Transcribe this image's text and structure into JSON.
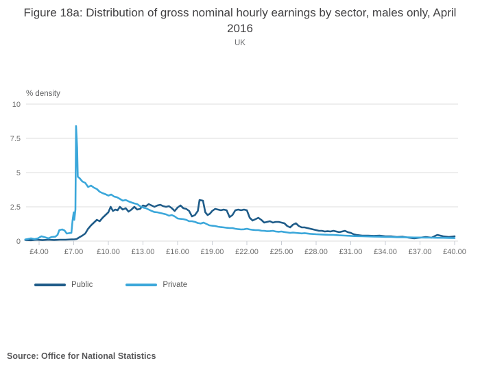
{
  "header": {
    "title": "Figure 18a: Distribution of gross nominal hourly earnings by sector, males only, April 2016",
    "subtitle": "UK"
  },
  "footer": {
    "source": "Source: Office for National Statistics"
  },
  "chart_data": {
    "type": "line",
    "title": "Figure 18a: Distribution of gross nominal hourly earnings by sector, males only, April 2016",
    "subtitle": "UK",
    "ylabel": "% density",
    "xlabel": "",
    "grid": "horizontal",
    "legend_position": "bottom-left",
    "xlim": [
      2.8,
      40.4
    ],
    "ylim": [
      0,
      10
    ],
    "x_tick_values": [
      4,
      7,
      10,
      13,
      16,
      19,
      22,
      25,
      28,
      31,
      34,
      37,
      40
    ],
    "x_tick_labels": [
      "£4.00",
      "£7.00",
      "£10.00",
      "£13.00",
      "£16.00",
      "£19.00",
      "£22.00",
      "£25.00",
      "£28.00",
      "£31.00",
      "£34.00",
      "£37.00",
      "£40.00"
    ],
    "y_tick_values": [
      0,
      2.5,
      5,
      7.5,
      10
    ],
    "y_tick_labels": [
      "0",
      "2.5",
      "5",
      "7.5",
      "10"
    ],
    "colors": {
      "public": "#1f5c89",
      "private": "#3ba7da",
      "gridline": "#dedede",
      "tick": "#c9cdd4",
      "axis_text": "#6e6e6e"
    },
    "series": [
      {
        "name": "Public",
        "color": "#1f5c89",
        "points": [
          [
            2.8,
            0.08
          ],
          [
            3.3,
            0.06
          ],
          [
            3.8,
            0.1
          ],
          [
            4.3,
            0.07
          ],
          [
            4.8,
            0.1
          ],
          [
            5.3,
            0.08
          ],
          [
            5.8,
            0.1
          ],
          [
            6.3,
            0.1
          ],
          [
            6.8,
            0.12
          ],
          [
            7.0,
            0.12
          ],
          [
            7.25,
            0.15
          ],
          [
            7.5,
            0.28
          ],
          [
            7.75,
            0.4
          ],
          [
            8.0,
            0.55
          ],
          [
            8.25,
            0.9
          ],
          [
            8.5,
            1.15
          ],
          [
            8.75,
            1.35
          ],
          [
            9.0,
            1.55
          ],
          [
            9.25,
            1.45
          ],
          [
            9.5,
            1.7
          ],
          [
            9.75,
            1.9
          ],
          [
            10.0,
            2.1
          ],
          [
            10.2,
            2.5
          ],
          [
            10.4,
            2.2
          ],
          [
            10.6,
            2.3
          ],
          [
            10.8,
            2.25
          ],
          [
            11.0,
            2.5
          ],
          [
            11.25,
            2.3
          ],
          [
            11.5,
            2.4
          ],
          [
            11.75,
            2.15
          ],
          [
            12.0,
            2.3
          ],
          [
            12.25,
            2.5
          ],
          [
            12.5,
            2.3
          ],
          [
            12.75,
            2.35
          ],
          [
            13.0,
            2.6
          ],
          [
            13.25,
            2.55
          ],
          [
            13.5,
            2.7
          ],
          [
            13.75,
            2.6
          ],
          [
            14.0,
            2.5
          ],
          [
            14.25,
            2.6
          ],
          [
            14.5,
            2.65
          ],
          [
            14.75,
            2.55
          ],
          [
            15.0,
            2.5
          ],
          [
            15.25,
            2.55
          ],
          [
            15.5,
            2.4
          ],
          [
            15.75,
            2.2
          ],
          [
            16.0,
            2.45
          ],
          [
            16.25,
            2.6
          ],
          [
            16.5,
            2.4
          ],
          [
            16.75,
            2.35
          ],
          [
            17.0,
            2.2
          ],
          [
            17.25,
            1.8
          ],
          [
            17.5,
            1.9
          ],
          [
            17.75,
            2.2
          ],
          [
            17.9,
            3.0
          ],
          [
            18.2,
            2.95
          ],
          [
            18.4,
            2.1
          ],
          [
            18.6,
            1.9
          ],
          [
            18.8,
            2.0
          ],
          [
            19.0,
            2.2
          ],
          [
            19.25,
            2.35
          ],
          [
            19.5,
            2.3
          ],
          [
            19.75,
            2.25
          ],
          [
            20.0,
            2.3
          ],
          [
            20.25,
            2.25
          ],
          [
            20.5,
            1.75
          ],
          [
            20.75,
            1.9
          ],
          [
            21.0,
            2.25
          ],
          [
            21.25,
            2.3
          ],
          [
            21.5,
            2.25
          ],
          [
            21.75,
            2.3
          ],
          [
            22.0,
            2.25
          ],
          [
            22.25,
            1.7
          ],
          [
            22.5,
            1.5
          ],
          [
            22.75,
            1.6
          ],
          [
            23.0,
            1.7
          ],
          [
            23.25,
            1.55
          ],
          [
            23.5,
            1.35
          ],
          [
            23.75,
            1.4
          ],
          [
            24.0,
            1.45
          ],
          [
            24.25,
            1.35
          ],
          [
            24.5,
            1.4
          ],
          [
            24.75,
            1.4
          ],
          [
            25.0,
            1.35
          ],
          [
            25.25,
            1.3
          ],
          [
            25.5,
            1.1
          ],
          [
            25.75,
            1.0
          ],
          [
            26.0,
            1.2
          ],
          [
            26.25,
            1.3
          ],
          [
            26.5,
            1.1
          ],
          [
            26.75,
            1.0
          ],
          [
            27.0,
            1.0
          ],
          [
            27.25,
            0.95
          ],
          [
            27.5,
            0.9
          ],
          [
            27.75,
            0.85
          ],
          [
            28.0,
            0.8
          ],
          [
            28.25,
            0.75
          ],
          [
            28.5,
            0.75
          ],
          [
            28.75,
            0.7
          ],
          [
            29.0,
            0.72
          ],
          [
            29.25,
            0.7
          ],
          [
            29.5,
            0.75
          ],
          [
            29.75,
            0.7
          ],
          [
            30.0,
            0.65
          ],
          [
            30.25,
            0.7
          ],
          [
            30.5,
            0.75
          ],
          [
            30.75,
            0.65
          ],
          [
            31.0,
            0.6
          ],
          [
            31.25,
            0.5
          ],
          [
            31.5,
            0.45
          ],
          [
            32.0,
            0.4
          ],
          [
            32.5,
            0.4
          ],
          [
            33.0,
            0.38
          ],
          [
            33.5,
            0.4
          ],
          [
            34.0,
            0.35
          ],
          [
            34.5,
            0.35
          ],
          [
            35.0,
            0.3
          ],
          [
            35.5,
            0.32
          ],
          [
            36.0,
            0.25
          ],
          [
            36.5,
            0.2
          ],
          [
            37.0,
            0.25
          ],
          [
            37.5,
            0.3
          ],
          [
            38.0,
            0.25
          ],
          [
            38.5,
            0.45
          ],
          [
            39.0,
            0.35
          ],
          [
            39.5,
            0.3
          ],
          [
            40.0,
            0.35
          ]
        ]
      },
      {
        "name": "Private",
        "color": "#3ba7da",
        "points": [
          [
            2.8,
            0.12
          ],
          [
            3.0,
            0.15
          ],
          [
            3.3,
            0.2
          ],
          [
            3.6,
            0.14
          ],
          [
            3.9,
            0.2
          ],
          [
            4.2,
            0.35
          ],
          [
            4.5,
            0.28
          ],
          [
            4.8,
            0.2
          ],
          [
            5.1,
            0.3
          ],
          [
            5.4,
            0.32
          ],
          [
            5.6,
            0.45
          ],
          [
            5.75,
            0.8
          ],
          [
            6.0,
            0.85
          ],
          [
            6.2,
            0.78
          ],
          [
            6.4,
            0.55
          ],
          [
            6.6,
            0.58
          ],
          [
            6.8,
            0.6
          ],
          [
            6.9,
            1.5
          ],
          [
            7.0,
            2.1
          ],
          [
            7.05,
            1.55
          ],
          [
            7.15,
            2.3
          ],
          [
            7.2,
            8.4
          ],
          [
            7.3,
            6.8
          ],
          [
            7.35,
            4.7
          ],
          [
            7.5,
            4.6
          ],
          [
            7.75,
            4.35
          ],
          [
            8.0,
            4.25
          ],
          [
            8.25,
            3.95
          ],
          [
            8.5,
            4.05
          ],
          [
            8.75,
            3.9
          ],
          [
            9.0,
            3.8
          ],
          [
            9.25,
            3.6
          ],
          [
            9.5,
            3.5
          ],
          [
            9.75,
            3.42
          ],
          [
            10.0,
            3.32
          ],
          [
            10.25,
            3.4
          ],
          [
            10.5,
            3.25
          ],
          [
            10.75,
            3.2
          ],
          [
            11.0,
            3.08
          ],
          [
            11.25,
            2.95
          ],
          [
            11.5,
            3.0
          ],
          [
            11.75,
            2.9
          ],
          [
            12.0,
            2.82
          ],
          [
            12.25,
            2.75
          ],
          [
            12.5,
            2.7
          ],
          [
            12.75,
            2.55
          ],
          [
            13.0,
            2.45
          ],
          [
            13.25,
            2.4
          ],
          [
            13.5,
            2.3
          ],
          [
            13.75,
            2.2
          ],
          [
            14.0,
            2.12
          ],
          [
            14.25,
            2.1
          ],
          [
            14.5,
            2.05
          ],
          [
            14.75,
            2.0
          ],
          [
            15.0,
            1.95
          ],
          [
            15.25,
            1.85
          ],
          [
            15.5,
            1.9
          ],
          [
            15.75,
            1.8
          ],
          [
            16.0,
            1.65
          ],
          [
            16.25,
            1.62
          ],
          [
            16.5,
            1.6
          ],
          [
            16.75,
            1.55
          ],
          [
            17.0,
            1.45
          ],
          [
            17.25,
            1.45
          ],
          [
            17.5,
            1.4
          ],
          [
            17.75,
            1.32
          ],
          [
            18.0,
            1.28
          ],
          [
            18.25,
            1.35
          ],
          [
            18.5,
            1.25
          ],
          [
            18.75,
            1.15
          ],
          [
            19.0,
            1.12
          ],
          [
            19.25,
            1.1
          ],
          [
            19.5,
            1.05
          ],
          [
            19.75,
            1.02
          ],
          [
            20.0,
            1.0
          ],
          [
            20.25,
            0.97
          ],
          [
            20.5,
            0.95
          ],
          [
            20.75,
            0.95
          ],
          [
            21.0,
            0.9
          ],
          [
            21.25,
            0.87
          ],
          [
            21.5,
            0.85
          ],
          [
            21.75,
            0.86
          ],
          [
            22.0,
            0.9
          ],
          [
            22.25,
            0.85
          ],
          [
            22.5,
            0.82
          ],
          [
            22.75,
            0.8
          ],
          [
            23.0,
            0.8
          ],
          [
            23.25,
            0.76
          ],
          [
            23.5,
            0.75
          ],
          [
            23.75,
            0.72
          ],
          [
            24.0,
            0.73
          ],
          [
            24.25,
            0.75
          ],
          [
            24.5,
            0.7
          ],
          [
            24.75,
            0.68
          ],
          [
            25.0,
            0.7
          ],
          [
            25.25,
            0.66
          ],
          [
            25.5,
            0.63
          ],
          [
            25.75,
            0.6
          ],
          [
            26.0,
            0.62
          ],
          [
            26.25,
            0.6
          ],
          [
            26.5,
            0.58
          ],
          [
            26.75,
            0.56
          ],
          [
            27.0,
            0.58
          ],
          [
            27.5,
            0.53
          ],
          [
            28.0,
            0.5
          ],
          [
            28.5,
            0.48
          ],
          [
            29.0,
            0.46
          ],
          [
            29.5,
            0.45
          ],
          [
            30.0,
            0.42
          ],
          [
            30.5,
            0.4
          ],
          [
            31.0,
            0.38
          ],
          [
            31.5,
            0.36
          ],
          [
            32.0,
            0.35
          ],
          [
            32.5,
            0.34
          ],
          [
            33.0,
            0.33
          ],
          [
            33.5,
            0.32
          ],
          [
            34.0,
            0.3
          ],
          [
            34.5,
            0.3
          ],
          [
            35.0,
            0.28
          ],
          [
            35.5,
            0.28
          ],
          [
            36.0,
            0.27
          ],
          [
            36.5,
            0.26
          ],
          [
            37.0,
            0.26
          ],
          [
            37.5,
            0.25
          ],
          [
            38.0,
            0.25
          ],
          [
            38.5,
            0.24
          ],
          [
            39.0,
            0.24
          ],
          [
            39.5,
            0.23
          ],
          [
            40.0,
            0.22
          ]
        ]
      }
    ]
  }
}
